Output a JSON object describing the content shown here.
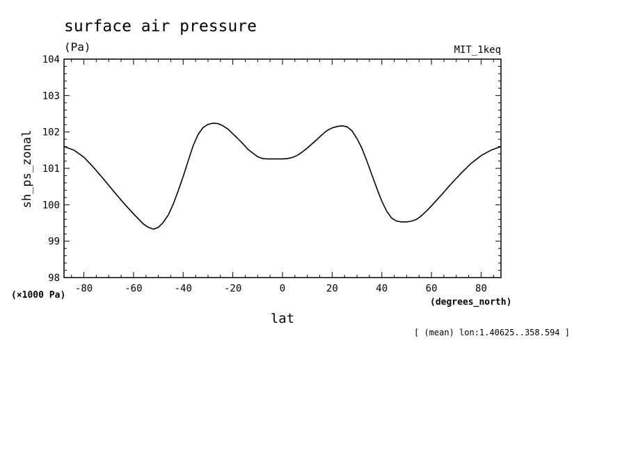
{
  "chart_data": {
    "type": "line",
    "title": "surface air pressure",
    "units": "(Pa)",
    "dataset": "MIT_1keq",
    "ylabel": "sh_ps_zonal",
    "xlabel": "lat",
    "x_units": "(degrees_north)",
    "y_scale_note": "(×1000 Pa)",
    "footnote": "[ (mean) lon:1.40625..358.594 ]",
    "xlim": [
      -88,
      88
    ],
    "ylim": [
      98,
      104
    ],
    "x_ticks": [
      -80,
      -60,
      -40,
      -20,
      0,
      20,
      40,
      60,
      80
    ],
    "x_tick_labels": [
      "-80",
      "-60",
      "-40",
      "-20",
      "0",
      "20",
      "40",
      "60",
      "80"
    ],
    "y_ticks": [
      98,
      99,
      100,
      101,
      102,
      103,
      104
    ],
    "y_tick_labels": [
      "98",
      "99",
      "100",
      "101",
      "102",
      "103",
      "104"
    ],
    "series": [
      {
        "x": [
          -88,
          -84,
          -80,
          -76,
          -72,
          -68,
          -64,
          -60,
          -56,
          -54,
          -52,
          -50,
          -48,
          -46,
          -44,
          -42,
          -40,
          -38,
          -36,
          -34,
          -32,
          -30,
          -28,
          -26,
          -24,
          -22,
          -20,
          -18,
          -16,
          -14,
          -12,
          -10,
          -8,
          -6,
          -4,
          -2,
          0,
          2,
          4,
          6,
          8,
          10,
          12,
          14,
          16,
          18,
          20,
          22,
          24,
          26,
          28,
          30,
          32,
          34,
          36,
          38,
          40,
          42,
          44,
          46,
          48,
          50,
          52,
          54,
          56,
          58,
          60,
          64,
          68,
          72,
          76,
          80,
          84,
          88
        ],
        "values": [
          101.6,
          101.5,
          101.31,
          101.02,
          100.7,
          100.37,
          100.05,
          99.75,
          99.47,
          99.38,
          99.33,
          99.38,
          99.52,
          99.72,
          100.02,
          100.38,
          100.78,
          101.2,
          101.62,
          101.93,
          102.12,
          102.21,
          102.24,
          102.23,
          102.17,
          102.08,
          101.95,
          101.82,
          101.68,
          101.53,
          101.42,
          101.32,
          101.27,
          101.26,
          101.26,
          101.26,
          101.26,
          101.27,
          101.3,
          101.36,
          101.45,
          101.56,
          101.68,
          101.8,
          101.93,
          102.04,
          102.11,
          102.15,
          102.17,
          102.14,
          102.03,
          101.82,
          101.55,
          101.2,
          100.82,
          100.45,
          100.1,
          99.82,
          99.63,
          99.55,
          99.53,
          99.53,
          99.55,
          99.6,
          99.7,
          99.83,
          99.97,
          100.27,
          100.58,
          100.87,
          101.14,
          101.35,
          101.5,
          101.6
        ]
      }
    ]
  }
}
